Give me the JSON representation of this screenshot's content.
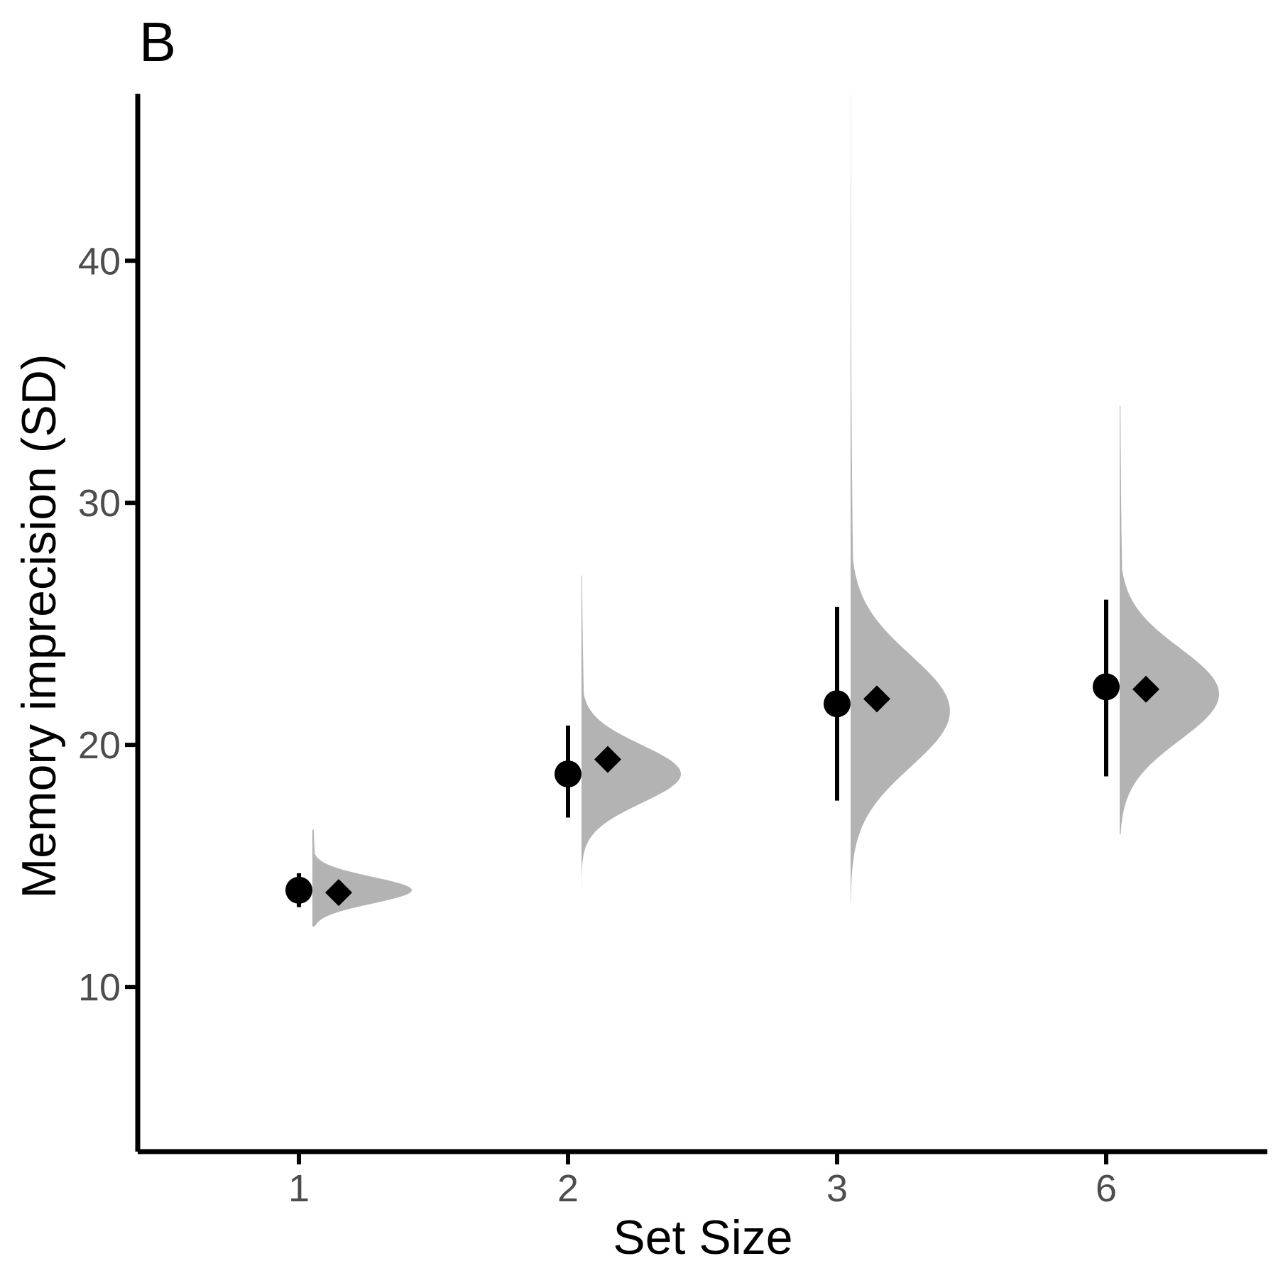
{
  "chart_data": {
    "type": "scatter",
    "panel_label": "B",
    "xlabel": "Set Size",
    "ylabel": "Memory imprecision (SD)",
    "categories": [
      "1",
      "2",
      "3",
      "6"
    ],
    "yticks": [
      10,
      20,
      30,
      40
    ],
    "ylim": [
      3.2,
      46.9
    ],
    "grid": false,
    "legend": "none",
    "observed": [
      {
        "set_size": "1",
        "mean": 14.0,
        "ci_low": 13.3,
        "ci_high": 14.7
      },
      {
        "set_size": "2",
        "mean": 18.8,
        "ci_low": 17.0,
        "ci_high": 20.8
      },
      {
        "set_size": "3",
        "mean": 21.7,
        "ci_low": 17.7,
        "ci_high": 25.7
      },
      {
        "set_size": "6",
        "mean": 22.4,
        "ci_low": 18.7,
        "ci_high": 26.0
      }
    ],
    "predicted": [
      {
        "set_size": "1",
        "value": 13.9
      },
      {
        "set_size": "2",
        "value": 19.4
      },
      {
        "set_size": "3",
        "value": 21.9
      },
      {
        "set_size": "6",
        "value": 22.3
      }
    ],
    "posterior_densities": [
      {
        "set_size": "1",
        "min": 12.5,
        "max": 16.5,
        "peak": 14.0,
        "spread": 0.55
      },
      {
        "set_size": "2",
        "min": 13.5,
        "max": 27.0,
        "peak": 18.8,
        "spread": 1.2
      },
      {
        "set_size": "3",
        "min": 13.5,
        "max": 46.9,
        "peak": 21.4,
        "spread": 2.3
      },
      {
        "set_size": "6",
        "min": 16.3,
        "max": 34.0,
        "peak": 22.1,
        "spread": 1.9
      }
    ],
    "colors": {
      "points": "#000000",
      "density": "#b3b3b3",
      "axis": "#000000",
      "tick_text": "#4d4d4d"
    }
  }
}
